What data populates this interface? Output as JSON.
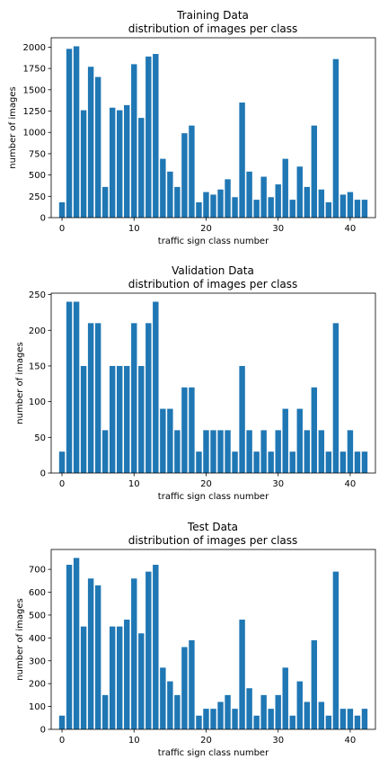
{
  "chart_data": [
    {
      "type": "bar",
      "title": "Training Data",
      "subtitle": "distribution of images per class",
      "xlabel": "traffic sign class number",
      "ylabel": "number of images",
      "ylim": [
        0,
        2110
      ],
      "xlim": [
        -1.5,
        43.5
      ],
      "xticks": [
        0,
        10,
        20,
        30,
        40
      ],
      "yticks": [
        0,
        250,
        500,
        750,
        1000,
        1250,
        1500,
        1750,
        2000
      ],
      "color": "#1f77b4",
      "categories": [
        0,
        1,
        2,
        3,
        4,
        5,
        6,
        7,
        8,
        9,
        10,
        11,
        12,
        13,
        14,
        15,
        16,
        17,
        18,
        19,
        20,
        21,
        22,
        23,
        24,
        25,
        26,
        27,
        28,
        29,
        30,
        31,
        32,
        33,
        34,
        35,
        36,
        37,
        38,
        39,
        40,
        41,
        42
      ],
      "values": [
        180,
        1980,
        2010,
        1260,
        1770,
        1650,
        360,
        1290,
        1260,
        1320,
        1800,
        1170,
        1890,
        1920,
        690,
        540,
        360,
        990,
        1080,
        180,
        300,
        270,
        330,
        450,
        240,
        1350,
        540,
        210,
        480,
        240,
        390,
        690,
        210,
        599,
        360,
        1080,
        330,
        180,
        1860,
        270,
        300,
        210,
        210
      ]
    },
    {
      "type": "bar",
      "title": "Validation Data",
      "subtitle": "distribution of images per class",
      "xlabel": "traffic sign class number",
      "ylabel": "number of images",
      "ylim": [
        0,
        252
      ],
      "xlim": [
        -1.5,
        43.5
      ],
      "xticks": [
        0,
        10,
        20,
        30,
        40
      ],
      "yticks": [
        0,
        50,
        100,
        150,
        200,
        250
      ],
      "color": "#1f77b4",
      "categories": [
        0,
        1,
        2,
        3,
        4,
        5,
        6,
        7,
        8,
        9,
        10,
        11,
        12,
        13,
        14,
        15,
        16,
        17,
        18,
        19,
        20,
        21,
        22,
        23,
        24,
        25,
        26,
        27,
        28,
        29,
        30,
        31,
        32,
        33,
        34,
        35,
        36,
        37,
        38,
        39,
        40,
        41,
        42
      ],
      "values": [
        30,
        240,
        240,
        150,
        210,
        210,
        60,
        150,
        150,
        150,
        210,
        150,
        210,
        240,
        90,
        90,
        60,
        120,
        120,
        30,
        60,
        60,
        60,
        60,
        30,
        150,
        60,
        30,
        60,
        30,
        60,
        90,
        30,
        90,
        60,
        120,
        60,
        30,
        210,
        30,
        60,
        30,
        30
      ]
    },
    {
      "type": "bar",
      "title": "Test Data",
      "subtitle": "distribution of images per class",
      "xlabel": "traffic sign class number",
      "ylabel": "number of images",
      "ylim": [
        0,
        787
      ],
      "xlim": [
        -1.5,
        43.5
      ],
      "xticks": [
        0,
        10,
        20,
        30,
        40
      ],
      "yticks": [
        0,
        100,
        200,
        300,
        400,
        500,
        600,
        700
      ],
      "color": "#1f77b4",
      "categories": [
        0,
        1,
        2,
        3,
        4,
        5,
        6,
        7,
        8,
        9,
        10,
        11,
        12,
        13,
        14,
        15,
        16,
        17,
        18,
        19,
        20,
        21,
        22,
        23,
        24,
        25,
        26,
        27,
        28,
        29,
        30,
        31,
        32,
        33,
        34,
        35,
        36,
        37,
        38,
        39,
        40,
        41,
        42
      ],
      "values": [
        60,
        720,
        750,
        450,
        660,
        630,
        150,
        450,
        450,
        480,
        660,
        420,
        690,
        720,
        270,
        210,
        150,
        360,
        390,
        60,
        90,
        90,
        120,
        150,
        90,
        480,
        180,
        60,
        150,
        90,
        150,
        270,
        60,
        210,
        120,
        390,
        120,
        60,
        690,
        90,
        90,
        60,
        90
      ]
    }
  ]
}
